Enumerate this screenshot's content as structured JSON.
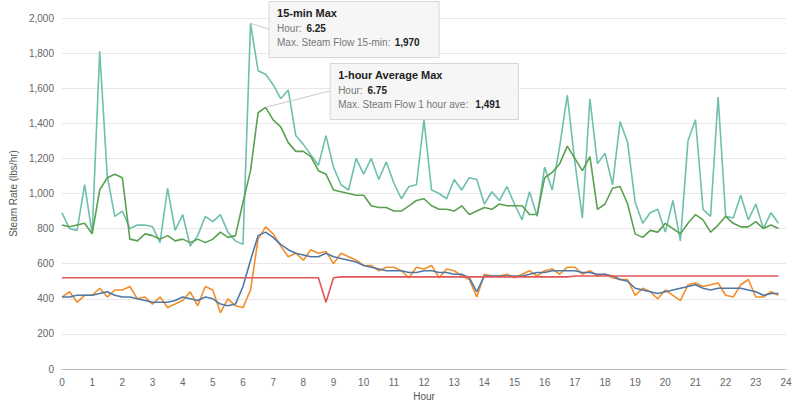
{
  "chart_data": {
    "type": "line",
    "x_label": "Hour",
    "y_label": "Steam Rate (lbs/hr)",
    "xlim": [
      0,
      24
    ],
    "xticks": [
      0,
      1,
      2,
      3,
      4,
      5,
      6,
      7,
      8,
      9,
      10,
      11,
      12,
      13,
      14,
      15,
      16,
      17,
      18,
      19,
      20,
      21,
      22,
      23,
      24
    ],
    "ylim": [
      0,
      2000
    ],
    "yticks": [
      0,
      200,
      400,
      600,
      800,
      {
        "value": 1000,
        "label": "1,000"
      },
      {
        "value": 1200,
        "label": "1,200"
      },
      {
        "value": 1400,
        "label": "1,400"
      },
      {
        "value": 1600,
        "label": "1,600"
      },
      {
        "value": 1800,
        "label": "1,800"
      },
      {
        "value": 2000,
        "label": "2,000"
      }
    ],
    "grid": true,
    "x": [
      0,
      0.25,
      0.5,
      0.75,
      1,
      1.25,
      1.5,
      1.75,
      2,
      2.25,
      2.5,
      2.75,
      3,
      3.25,
      3.5,
      3.75,
      4,
      4.25,
      4.5,
      4.75,
      5,
      5.25,
      5.5,
      5.75,
      6,
      6.25,
      6.5,
      6.75,
      7,
      7.25,
      7.5,
      7.75,
      8,
      8.25,
      8.5,
      8.75,
      9,
      9.25,
      9.5,
      9.75,
      10,
      10.25,
      10.5,
      10.75,
      11,
      11.25,
      11.5,
      11.75,
      12,
      12.25,
      12.5,
      12.75,
      13,
      13.25,
      13.5,
      13.75,
      14,
      14.25,
      14.5,
      14.75,
      15,
      15.25,
      15.5,
      15.75,
      16,
      16.25,
      16.5,
      16.75,
      17,
      17.25,
      17.5,
      17.75,
      18,
      18.25,
      18.5,
      18.75,
      19,
      19.25,
      19.5,
      19.75,
      20,
      20.25,
      20.5,
      20.75,
      21,
      21.25,
      21.5,
      21.75,
      22,
      22.25,
      22.5,
      22.75,
      23,
      23.25,
      23.5,
      23.75
    ],
    "series": [
      {
        "color": "#6fbfae",
        "values": [
          890,
          800,
          790,
          1050,
          770,
          1810,
          1100,
          870,
          900,
          800,
          820,
          820,
          810,
          720,
          1030,
          790,
          880,
          700,
          760,
          870,
          840,
          880,
          780,
          730,
          710,
          1970,
          1700,
          1680,
          1620,
          1540,
          1590,
          1330,
          1280,
          1220,
          1160,
          1330,
          1150,
          1050,
          1020,
          1200,
          1110,
          1200,
          1080,
          1180,
          1060,
          970,
          1040,
          1050,
          1420,
          1020,
          1000,
          970,
          1080,
          1020,
          1090,
          1080,
          940,
          1010,
          960,
          1040,
          940,
          850,
          1010,
          870,
          1150,
          1020,
          1270,
          1560,
          1180,
          860,
          1540,
          1170,
          1230,
          1050,
          1410,
          1290,
          950,
          830,
          890,
          910,
          780,
          960,
          730,
          1300,
          1420,
          910,
          870,
          1550,
          870,
          860,
          990,
          850,
          940,
          800,
          890,
          830
        ]
      },
      {
        "color": "#59a14f",
        "values": [
          820,
          810,
          820,
          830,
          770,
          1020,
          1090,
          1110,
          1090,
          740,
          730,
          770,
          760,
          740,
          760,
          730,
          740,
          720,
          740,
          720,
          740,
          780,
          750,
          760,
          950,
          1130,
          1460,
          1491,
          1420,
          1380,
          1290,
          1240,
          1240,
          1210,
          1130,
          1110,
          1020,
          1010,
          1000,
          990,
          990,
          930,
          920,
          920,
          900,
          900,
          930,
          960,
          970,
          930,
          910,
          910,
          900,
          930,
          880,
          900,
          920,
          910,
          940,
          930,
          930,
          930,
          880,
          880,
          1090,
          1120,
          1170,
          1270,
          1200,
          1130,
          1210,
          910,
          940,
          1030,
          1040,
          940,
          770,
          750,
          790,
          780,
          830,
          800,
          770,
          830,
          880,
          850,
          780,
          820,
          870,
          830,
          810,
          810,
          840,
          800,
          820,
          800
        ]
      },
      {
        "color": "#f28e2b",
        "values": [
          410,
          440,
          380,
          420,
          420,
          460,
          410,
          450,
          450,
          470,
          400,
          410,
          370,
          410,
          350,
          370,
          390,
          440,
          360,
          470,
          450,
          320,
          400,
          360,
          350,
          450,
          740,
          810,
          770,
          700,
          640,
          660,
          620,
          680,
          660,
          670,
          600,
          660,
          640,
          620,
          590,
          590,
          560,
          580,
          580,
          560,
          520,
          580,
          570,
          590,
          520,
          570,
          560,
          530,
          510,
          410,
          540,
          530,
          530,
          540,
          520,
          540,
          560,
          530,
          560,
          570,
          540,
          580,
          580,
          540,
          560,
          530,
          540,
          520,
          510,
          510,
          420,
          460,
          440,
          400,
          450,
          420,
          390,
          480,
          490,
          470,
          480,
          490,
          420,
          410,
          480,
          510,
          410,
          410,
          440,
          420
        ]
      },
      {
        "color": "#4e79a7",
        "values": [
          410,
          410,
          420,
          420,
          420,
          430,
          440,
          420,
          410,
          410,
          400,
          390,
          380,
          380,
          380,
          390,
          410,
          400,
          390,
          410,
          400,
          370,
          360,
          370,
          470,
          620,
          760,
          780,
          750,
          710,
          680,
          660,
          650,
          640,
          640,
          660,
          640,
          630,
          620,
          610,
          590,
          580,
          570,
          560,
          560,
          560,
          550,
          550,
          560,
          560,
          550,
          550,
          540,
          540,
          520,
          440,
          530,
          530,
          530,
          530,
          530,
          530,
          540,
          550,
          550,
          560,
          560,
          560,
          560,
          550,
          550,
          540,
          540,
          530,
          510,
          500,
          460,
          450,
          440,
          430,
          440,
          450,
          460,
          470,
          480,
          460,
          450,
          460,
          460,
          460,
          460,
          450,
          440,
          420,
          430,
          430
        ]
      },
      {
        "color": "#e15759",
        "values": [
          520,
          520,
          520,
          520,
          520,
          520,
          520,
          520,
          520,
          520,
          520,
          520,
          520,
          520,
          520,
          520,
          520,
          520,
          520,
          520,
          520,
          520,
          520,
          520,
          520,
          520,
          520,
          520,
          520,
          520,
          520,
          520,
          520,
          520,
          520,
          380,
          520,
          525,
          525,
          525,
          525,
          525,
          525,
          525,
          525,
          525,
          525,
          525,
          525,
          525,
          525,
          525,
          525,
          525,
          525,
          525,
          525,
          525,
          525,
          525,
          525,
          525,
          525,
          525,
          525,
          525,
          525,
          525,
          530,
          530,
          530,
          530,
          530,
          530,
          530,
          530,
          530,
          530,
          530,
          530,
          530,
          530,
          530,
          530,
          530,
          530,
          530,
          530,
          530,
          530,
          530,
          530,
          530,
          530,
          530,
          530
        ]
      }
    ],
    "annotations": [
      {
        "title": "15-min Max",
        "x": 6.25,
        "y": 1970,
        "rows": [
          {
            "label": "Hour:",
            "value": 6.25
          },
          {
            "label": "Max. Steam Flow 15-min:",
            "value": 1970,
            "value_label": "1,970"
          }
        ]
      },
      {
        "title": "1-hour Average Max",
        "x": 6.75,
        "y": 1491,
        "rows": [
          {
            "label": "Hour:",
            "value": 6.75
          },
          {
            "label": "Max. Steam Flow 1 hour ave:",
            "value": 1491,
            "value_label": "1,491"
          }
        ]
      }
    ]
  }
}
